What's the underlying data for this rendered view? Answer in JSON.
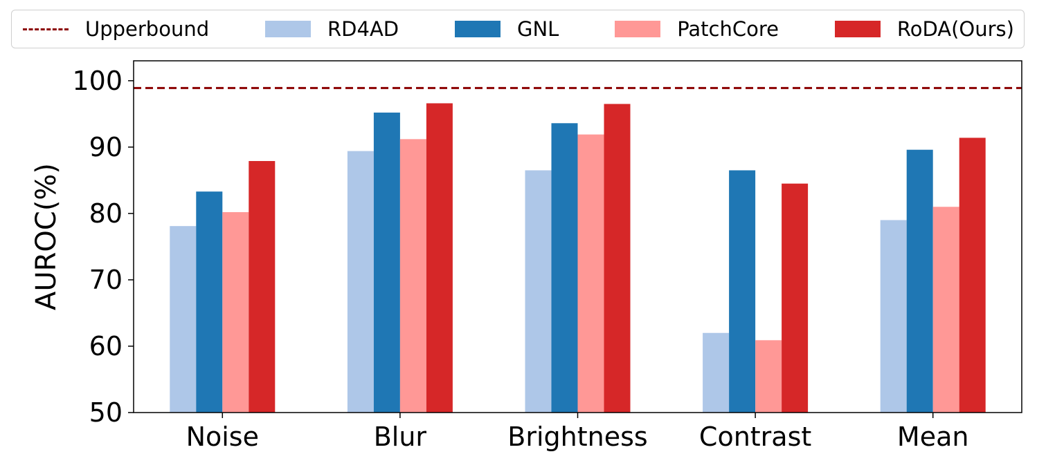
{
  "chart_data": {
    "type": "bar",
    "title": "",
    "xlabel": "",
    "ylabel": "AUROC(%)",
    "ylim": [
      50,
      103
    ],
    "yticks": [
      50,
      60,
      70,
      80,
      90,
      100
    ],
    "grid": false,
    "legend_position": "top",
    "categories": [
      "Noise",
      "Blur",
      "Brightness",
      "Contrast",
      "Mean"
    ],
    "series": [
      {
        "name": "RD4AD",
        "color": "#aec7e8",
        "values": [
          78.1,
          89.4,
          86.5,
          62.0,
          79.0
        ]
      },
      {
        "name": "GNL",
        "color": "#1f77b4",
        "values": [
          83.3,
          95.2,
          93.6,
          86.5,
          89.6
        ]
      },
      {
        "name": "PatchCore",
        "color": "#ff9896",
        "values": [
          80.2,
          91.2,
          91.9,
          60.9,
          81.0
        ]
      },
      {
        "name": "RoDA(Ours)",
        "color": "#d62728",
        "values": [
          87.9,
          96.6,
          96.5,
          84.5,
          91.4
        ]
      }
    ],
    "reference_line": {
      "name": "Upperbound",
      "value": 98.9,
      "color": "#8b0000",
      "style": "dashed"
    }
  }
}
